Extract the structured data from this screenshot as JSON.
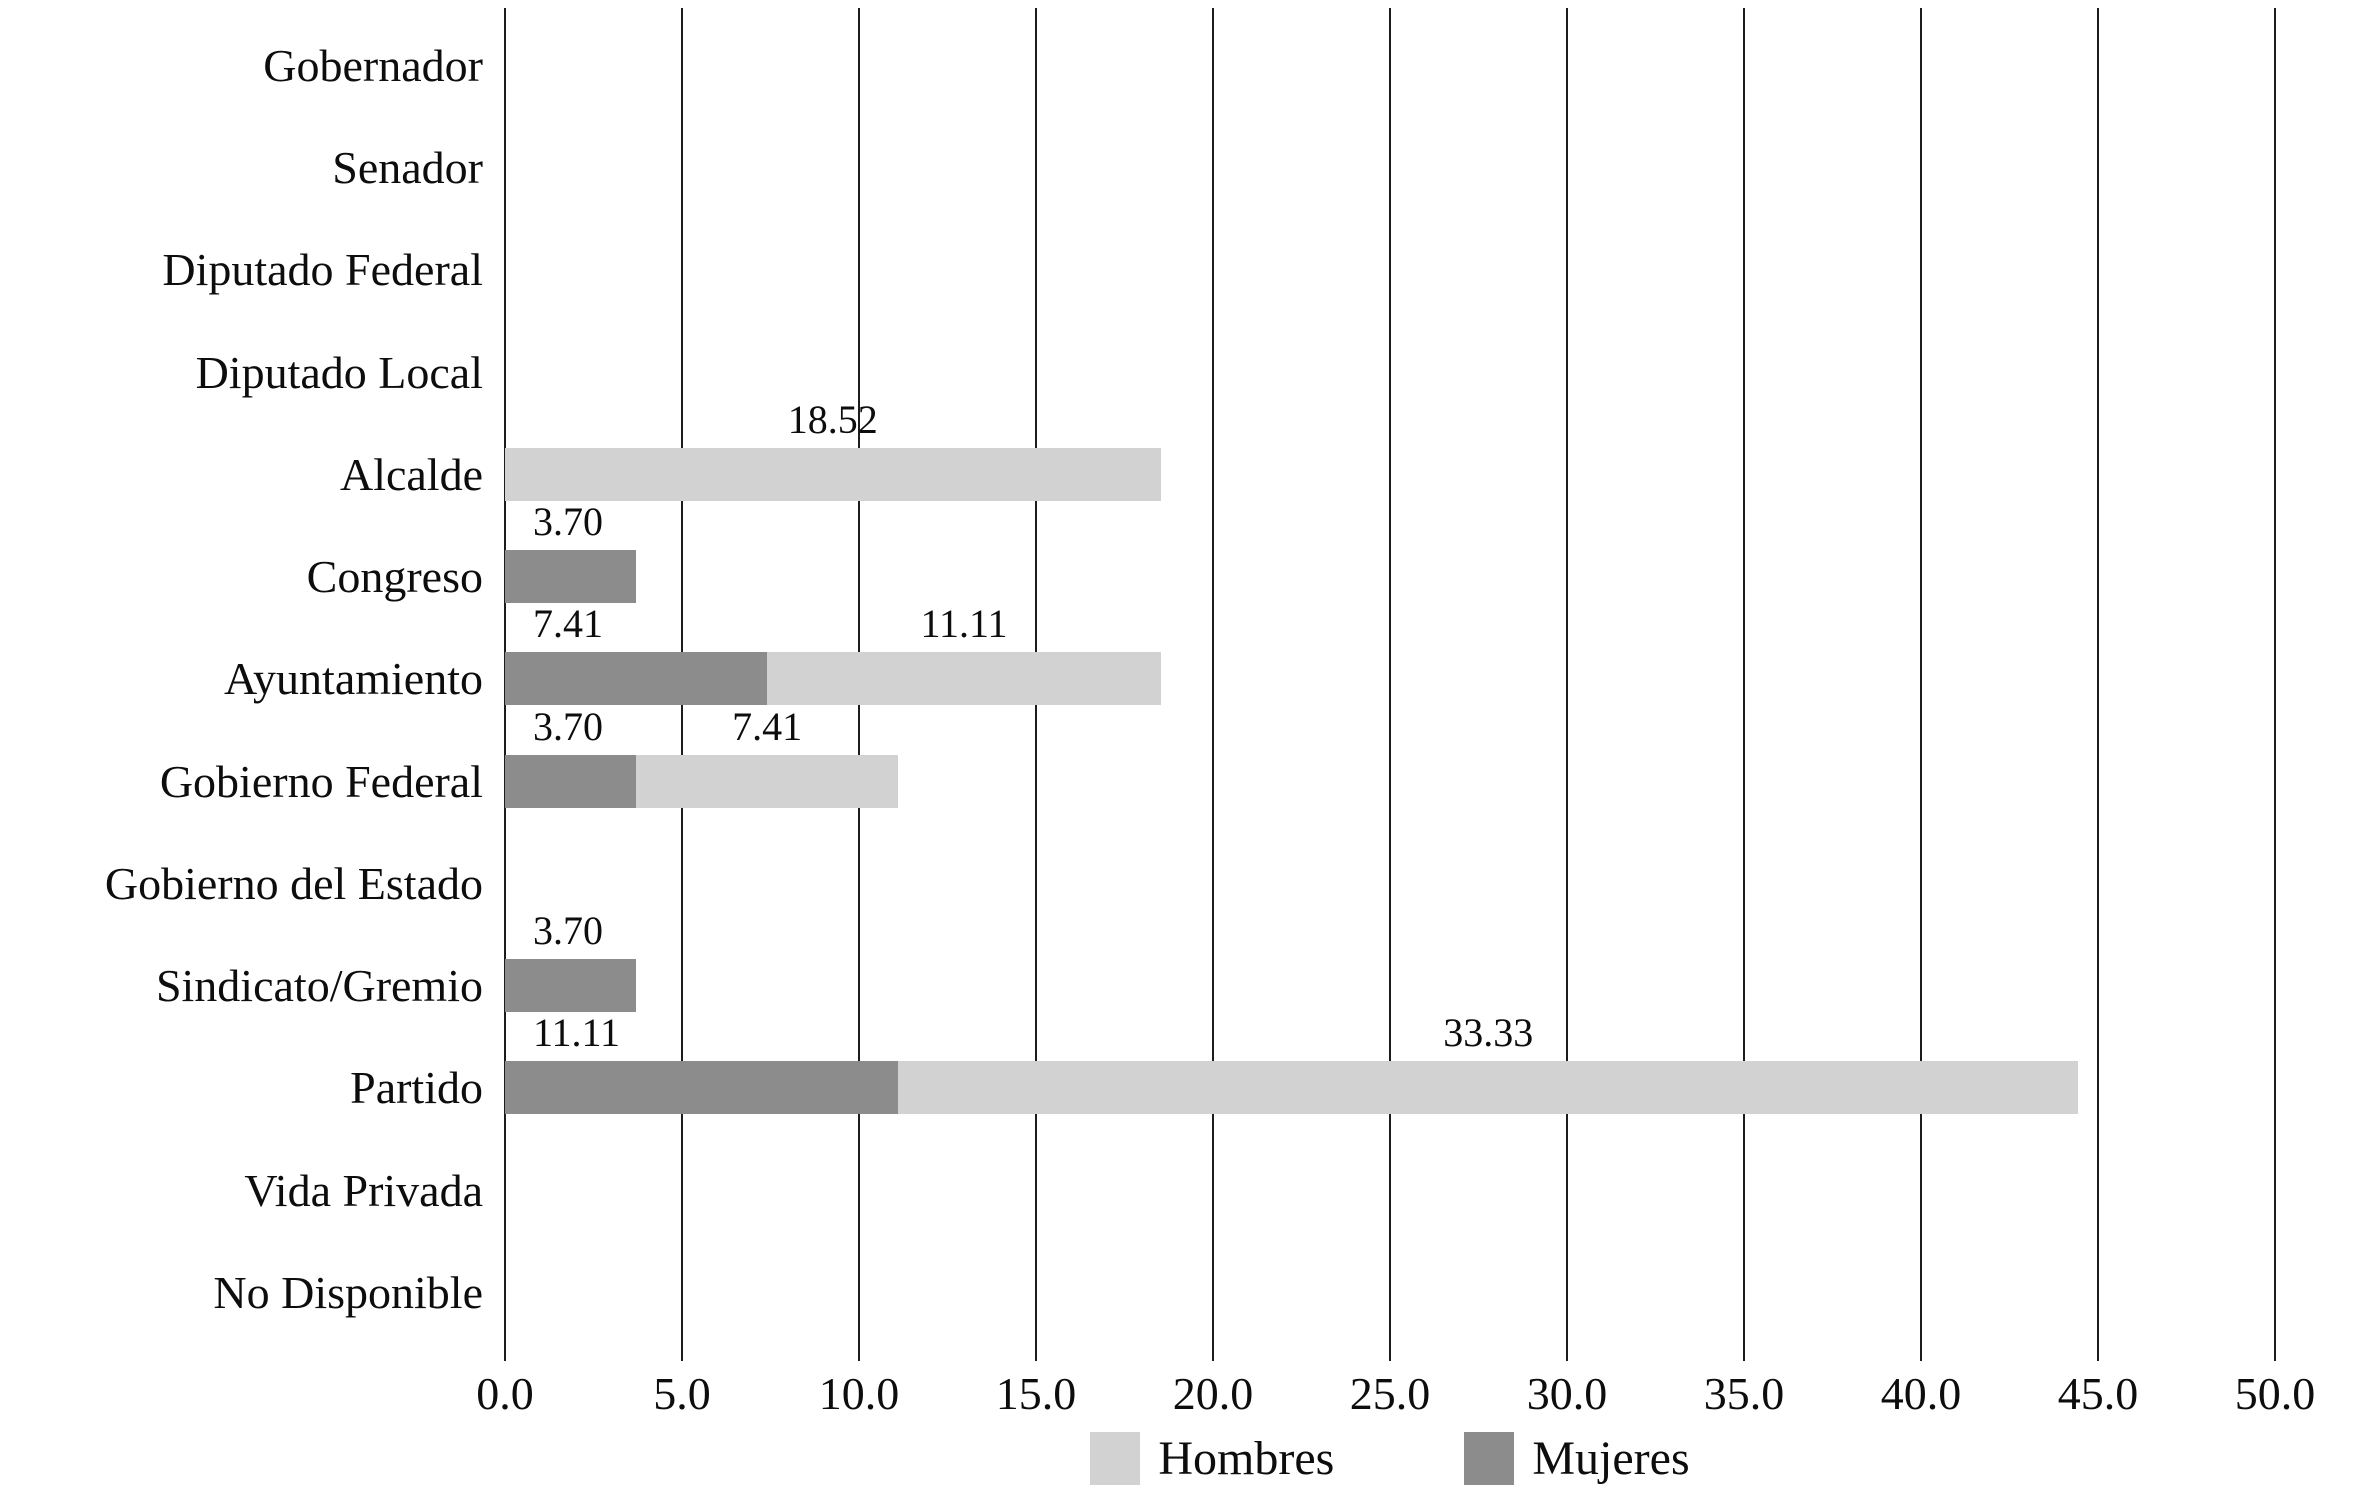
{
  "chart_data": {
    "type": "bar",
    "orientation": "horizontal",
    "stacked": true,
    "title": "",
    "xlabel": "",
    "ylabel": "",
    "grid": true,
    "legend_position": "bottom",
    "categories": [
      "Gobernador",
      "Senador",
      "Diputado Federal",
      "Diputado Local",
      "Alcalde",
      "Congreso",
      "Ayuntamiento",
      "Gobierno Federal",
      "Gobierno del Estado",
      "Sindicato/Gremio",
      "Partido",
      "Vida Privada",
      "No Disponible"
    ],
    "series": [
      {
        "name": "Mujeres",
        "color": "#8c8c8c",
        "values": [
          0,
          0,
          0,
          0,
          0,
          3.7,
          7.41,
          3.7,
          0,
          3.7,
          11.11,
          0,
          0
        ],
        "labels": [
          "",
          "",
          "",
          "",
          "",
          "3.70",
          "7.41",
          "3.70",
          "",
          "3.70",
          "11.11",
          "",
          ""
        ]
      },
      {
        "name": "Hombres",
        "color": "#d2d2d2",
        "values": [
          0,
          0,
          0,
          0,
          18.52,
          0,
          11.11,
          7.41,
          0,
          0,
          33.33,
          0,
          0
        ],
        "labels": [
          "",
          "",
          "",
          "",
          "18.52",
          "",
          "11.11",
          "7.41",
          "",
          "",
          "33.33",
          "",
          ""
        ]
      }
    ],
    "x_axis": {
      "min": 0,
      "max": 50,
      "step": 5,
      "tick_labels": [
        "0.0",
        "5.0",
        "10.0",
        "15.0",
        "20.0",
        "25.0",
        "30.0",
        "35.0",
        "40.0",
        "45.0",
        "50.0"
      ]
    },
    "legend": [
      {
        "label": "Hombres",
        "color": "#d2d2d2"
      },
      {
        "label": "Mujeres",
        "color": "#8c8c8c"
      }
    ]
  },
  "colors": {
    "background": "#ffffff",
    "gridline": "#1c1c1c",
    "text": "#0d0d0d",
    "hombres": "#d2d2d2",
    "mujeres": "#8c8c8c"
  }
}
